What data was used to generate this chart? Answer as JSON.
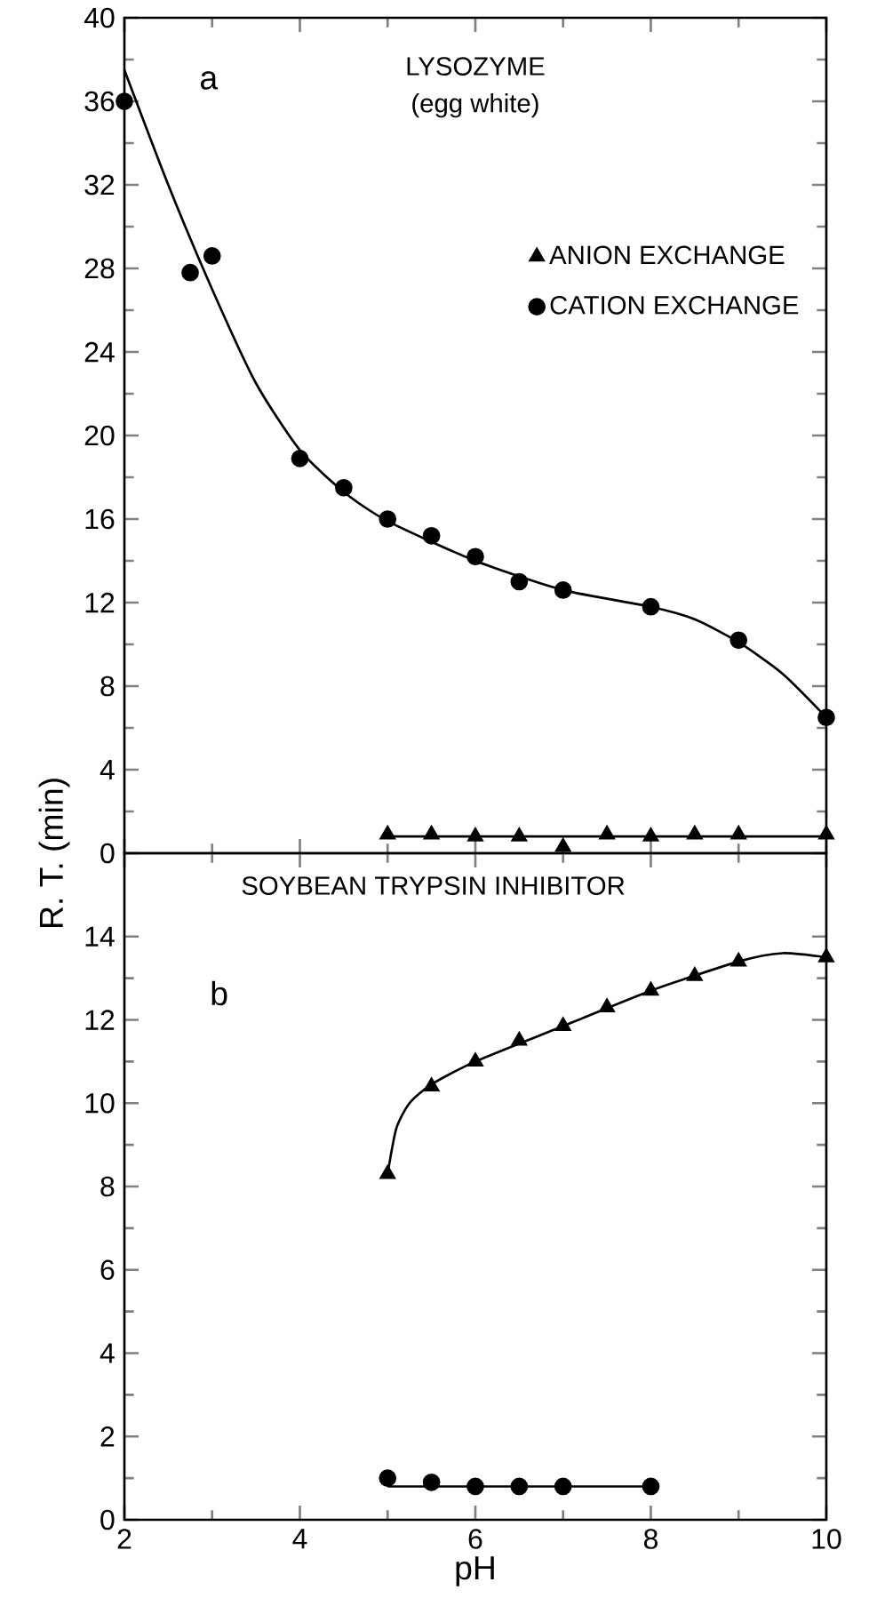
{
  "chart_data": [
    {
      "type": "scatter",
      "title": "LYSOZYME",
      "subtitle": "(egg white)",
      "annotations": [
        "a"
      ],
      "xlim": [
        2,
        10
      ],
      "xticks": [
        2,
        4,
        6,
        8,
        10
      ],
      "ylim": [
        0,
        40
      ],
      "yticks": [
        0,
        4,
        8,
        12,
        16,
        20,
        24,
        28,
        32,
        36,
        40
      ],
      "tick_labels": "y",
      "legend": "top right",
      "grid": false,
      "series": [
        {
          "name": "ANION EXCHANGE",
          "color": "#000000",
          "marker": "triangle",
          "x": [
            5,
            5.5,
            6,
            6.5,
            7,
            7.5,
            8,
            8.5,
            9,
            10
          ],
          "values": [
            0.9,
            0.9,
            0.8,
            0.8,
            0.3,
            0.9,
            0.8,
            0.9,
            0.9,
            0.9
          ]
        },
        {
          "name": "CATION EXCHANGE",
          "color": "#000000",
          "marker": "circle",
          "x": [
            2,
            2.75,
            3,
            4,
            4.5,
            5,
            5.5,
            6,
            6.5,
            7,
            8,
            9,
            10
          ],
          "values": [
            36,
            27.8,
            28.6,
            18.9,
            17.5,
            16,
            15.2,
            14.2,
            13,
            12.6,
            11.8,
            10.2,
            6.5
          ]
        },
        {
          "type": "line",
          "color": "#000000",
          "marker": "none",
          "line_style": "solid",
          "x": [
            2,
            2.5,
            3,
            3.5,
            4,
            4.5,
            5,
            6,
            7,
            8,
            8.5,
            9,
            9.5,
            10
          ],
          "values": [
            37.5,
            32,
            27,
            22.5,
            19.3,
            17.3,
            15.9,
            14,
            12.6,
            11.8,
            11.2,
            10.1,
            8.6,
            6.5
          ]
        },
        {
          "type": "line",
          "color": "#000000",
          "marker": "none",
          "line_style": "solid",
          "x": [
            5,
            10
          ],
          "values": [
            0.8,
            0.8
          ]
        }
      ]
    },
    {
      "type": "scatter",
      "title": "SOYBEAN TRYPSIN INHIBITOR",
      "annotations": [
        "b"
      ],
      "xlabel": "pH",
      "ylabel": "R. T.  (min)",
      "xlim": [
        2,
        10
      ],
      "xticks": [
        2,
        4,
        6,
        8,
        10
      ],
      "ylim": [
        0,
        16
      ],
      "yticks": [
        0,
        2,
        4,
        6,
        8,
        10,
        12,
        14
      ],
      "grid": false,
      "series": [
        {
          "color": "#000000",
          "marker": "triangle",
          "x": [
            5,
            5.5,
            6,
            6.5,
            7,
            7.5,
            8,
            8.5,
            9,
            10
          ],
          "values": [
            8.3,
            10.4,
            11,
            11.5,
            11.85,
            12.3,
            12.7,
            13.05,
            13.4,
            13.5
          ]
        },
        {
          "color": "#000000",
          "marker": "circle",
          "x": [
            5,
            5.5,
            6,
            6.5,
            7,
            8
          ],
          "values": [
            1,
            0.9,
            0.8,
            0.8,
            0.8,
            0.8
          ]
        },
        {
          "type": "line",
          "color": "#000000",
          "marker": "none",
          "line_style": "solid",
          "x": [
            5,
            5.1,
            5.25,
            5.5,
            6,
            7,
            8,
            9,
            9.5,
            10
          ],
          "values": [
            8.3,
            9.4,
            10,
            10.45,
            11,
            11.85,
            12.7,
            13.4,
            13.6,
            13.5
          ]
        },
        {
          "type": "line",
          "color": "#000000",
          "marker": "none",
          "line_style": "solid",
          "x": [
            5,
            8
          ],
          "values": [
            0.8,
            0.8
          ]
        }
      ]
    }
  ]
}
